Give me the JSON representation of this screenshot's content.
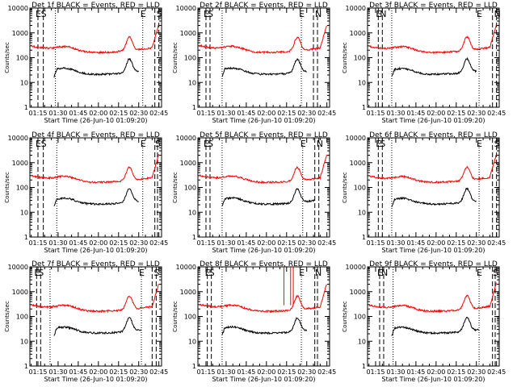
{
  "colors": {
    "events": "#000000",
    "lld": "#ff0000",
    "axis": "#000000"
  },
  "shared": {
    "xlabel": "Start Time (26-Jun-10 01:09:20)",
    "ylabel": "Counts/sec",
    "yscale": "log",
    "ylim": [
      1,
      10000
    ],
    "xlim": [
      "01:09",
      "02:47"
    ],
    "x_ticks": [
      "01:15",
      "01:30",
      "01:45",
      "02:00",
      "02:15",
      "02:30",
      "02:45"
    ],
    "y_ticks": [
      "1",
      "10",
      "100",
      "1000",
      "10000"
    ]
  },
  "chart_data": [
    {
      "type": "line",
      "title": "Det 1f BLACK = Events, RED = LLD",
      "markers": [
        "E",
        "S",
        "E",
        "S"
      ]
    },
    {
      "type": "line",
      "title": "Det 2f BLACK = Events, RED = LLD",
      "markers": [
        "E",
        "S",
        "E",
        "N"
      ]
    },
    {
      "type": "line",
      "title": "Det 3f BLACK = Events, RED = LLD",
      "markers": [
        "E",
        "N",
        "E",
        "N"
      ]
    },
    {
      "type": "line",
      "title": "Det 4f BLACK = Events, RED = LLD",
      "markers": [
        "E",
        "S",
        "E",
        "S"
      ]
    },
    {
      "type": "line",
      "title": "Det 5f BLACK = Events, RED = LLD",
      "markers": [
        "E",
        "S",
        "E",
        "N"
      ]
    },
    {
      "type": "line",
      "title": "Det 6f BLACK = Events, RED = LLD",
      "markers": [
        "E",
        "S",
        "E",
        "S"
      ]
    },
    {
      "type": "line",
      "title": "Det 7f BLACK = Events, RED = LLD",
      "markers": [
        "E",
        "S",
        "E",
        "S"
      ]
    },
    {
      "type": "line",
      "title": "Det 8f BLACK = Events, RED = LLD",
      "markers": [
        "E",
        "S",
        "E",
        "N"
      ]
    },
    {
      "type": "line",
      "title": "Det 9f BLACK = Events, RED = LLD",
      "markers": [
        "E",
        "N",
        "E",
        "S"
      ]
    }
  ]
}
